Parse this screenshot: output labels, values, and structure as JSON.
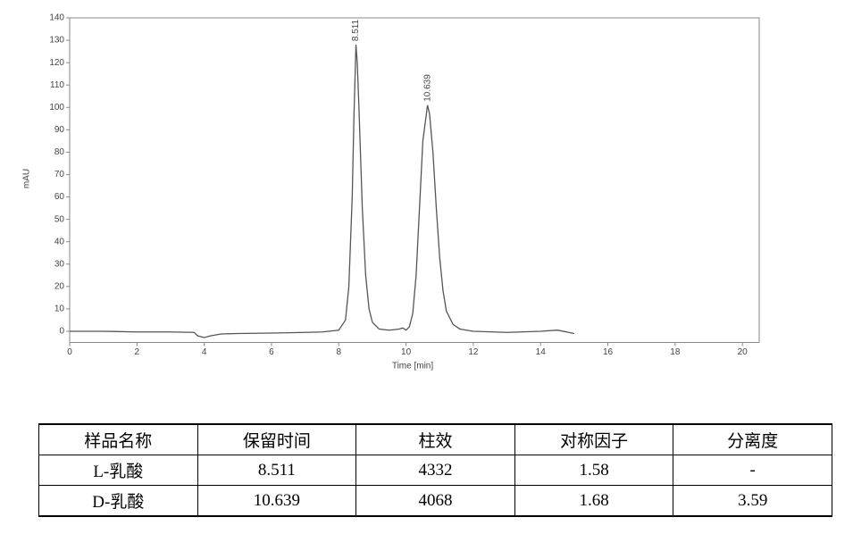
{
  "chart_data": {
    "type": "line",
    "ylabel": "mAU",
    "xlabel": "Time [min]",
    "color": "#555555",
    "x": [
      0,
      1,
      2,
      3,
      3.7,
      3.8,
      4.0,
      4.2,
      4.5,
      5,
      6,
      7,
      7.5,
      8.0,
      8.2,
      8.3,
      8.4,
      8.45,
      8.511,
      8.55,
      8.6,
      8.7,
      8.8,
      8.9,
      9.0,
      9.2,
      9.5,
      9.8,
      9.9,
      10.0,
      10.1,
      10.2,
      10.3,
      10.4,
      10.5,
      10.639,
      10.7,
      10.8,
      10.9,
      11.0,
      11.1,
      11.2,
      11.4,
      11.6,
      12,
      13,
      14,
      14.5,
      15
    ],
    "values": [
      0,
      0,
      -0.3,
      -0.3,
      -0.5,
      -2,
      -2.8,
      -2,
      -1.2,
      -1,
      -0.8,
      -0.5,
      -0.3,
      0.5,
      5,
      20,
      60,
      95,
      128,
      120,
      100,
      55,
      25,
      10,
      4,
      1,
      0.5,
      1,
      1.5,
      0.5,
      2,
      8,
      25,
      55,
      85,
      101,
      97,
      80,
      55,
      33,
      18,
      9,
      3,
      1,
      0,
      -0.5,
      0,
      0.5,
      -1
    ],
    "xlim": [
      0,
      20.5
    ],
    "ylim": [
      -5,
      140
    ],
    "xticks": [
      0,
      2,
      4,
      6,
      8,
      10,
      12,
      14,
      16,
      18,
      20
    ],
    "yticks": [
      0,
      10,
      20,
      30,
      40,
      50,
      60,
      70,
      80,
      90,
      100,
      110,
      120,
      130,
      140
    ],
    "annotations": [
      {
        "text": "8.511",
        "x": 8.511,
        "y": 128
      },
      {
        "text": "10.639",
        "x": 10.639,
        "y": 101
      }
    ]
  },
  "table": {
    "header": [
      "样品名称",
      "保留时间",
      "柱效",
      "对称因子",
      "分离度"
    ],
    "rows": [
      [
        "L-乳酸",
        "8.511",
        "4332",
        "1.58",
        "-"
      ],
      [
        "D-乳酸",
        "10.639",
        "4068",
        "1.68",
        "3.59"
      ]
    ]
  }
}
